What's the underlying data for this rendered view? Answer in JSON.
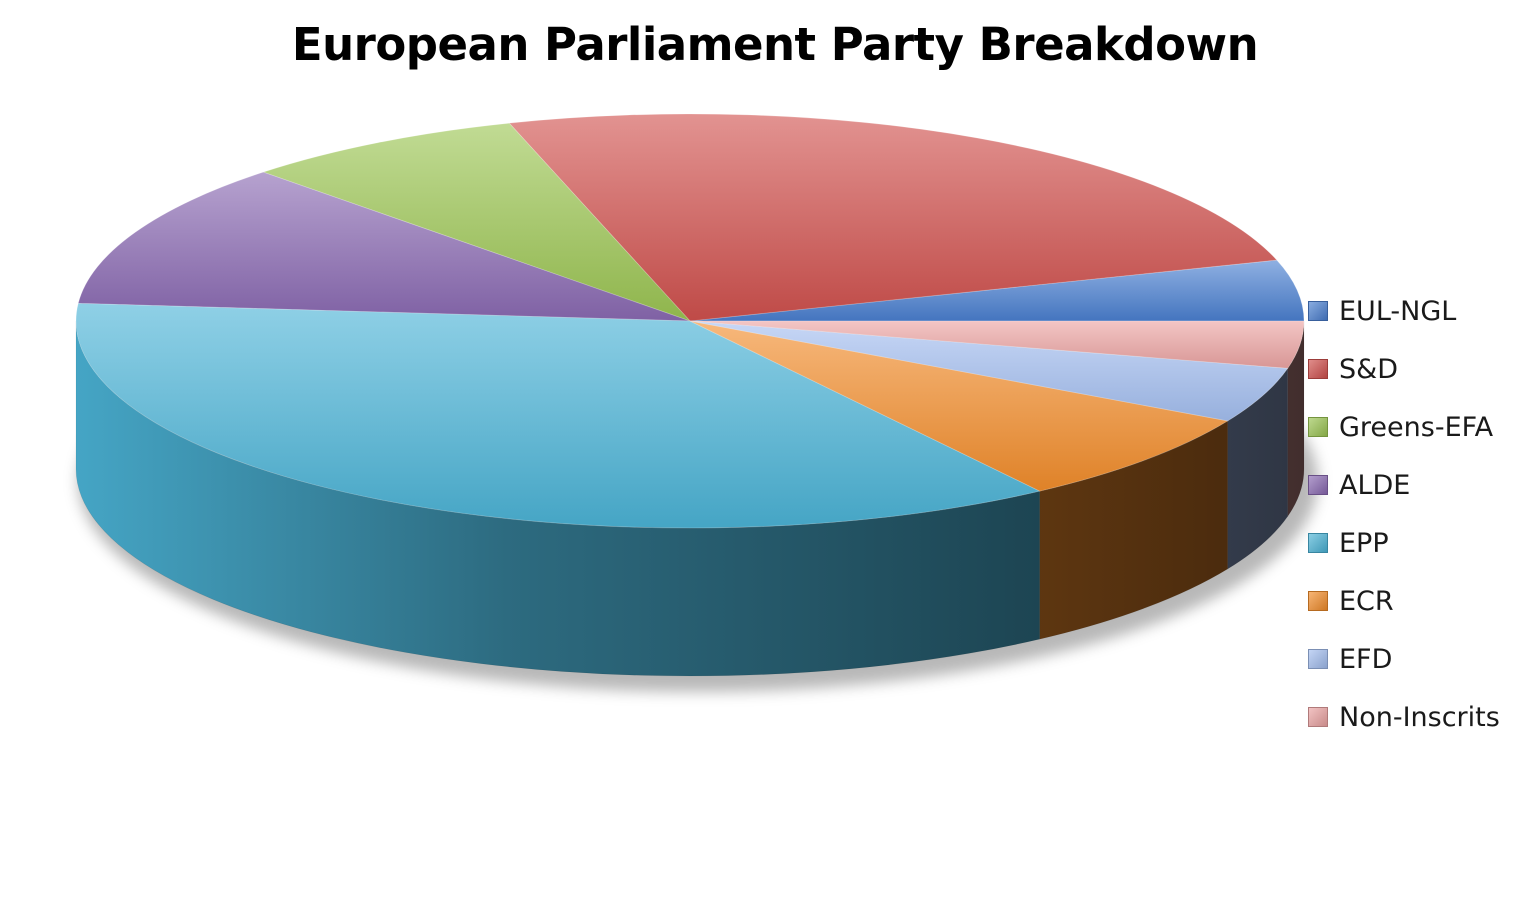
{
  "chart_data": {
    "type": "pie",
    "title": "European Parliament Party Breakdown",
    "categories": [
      "EUL-NGL",
      "S&D",
      "Greens-EFA",
      "ALDE",
      "EPP",
      "ECR",
      "EFD",
      "Non-Inscrits"
    ],
    "values": [
      35,
      184,
      55,
      84,
      265,
      54,
      32,
      27
    ],
    "colors": [
      "#4a7fd0",
      "#d0504d",
      "#9bc553",
      "#8a69b2",
      "#4bb3d6",
      "#f28d2b",
      "#a4bff0",
      "#eba3a2"
    ],
    "legend": "right",
    "style": "3d"
  }
}
